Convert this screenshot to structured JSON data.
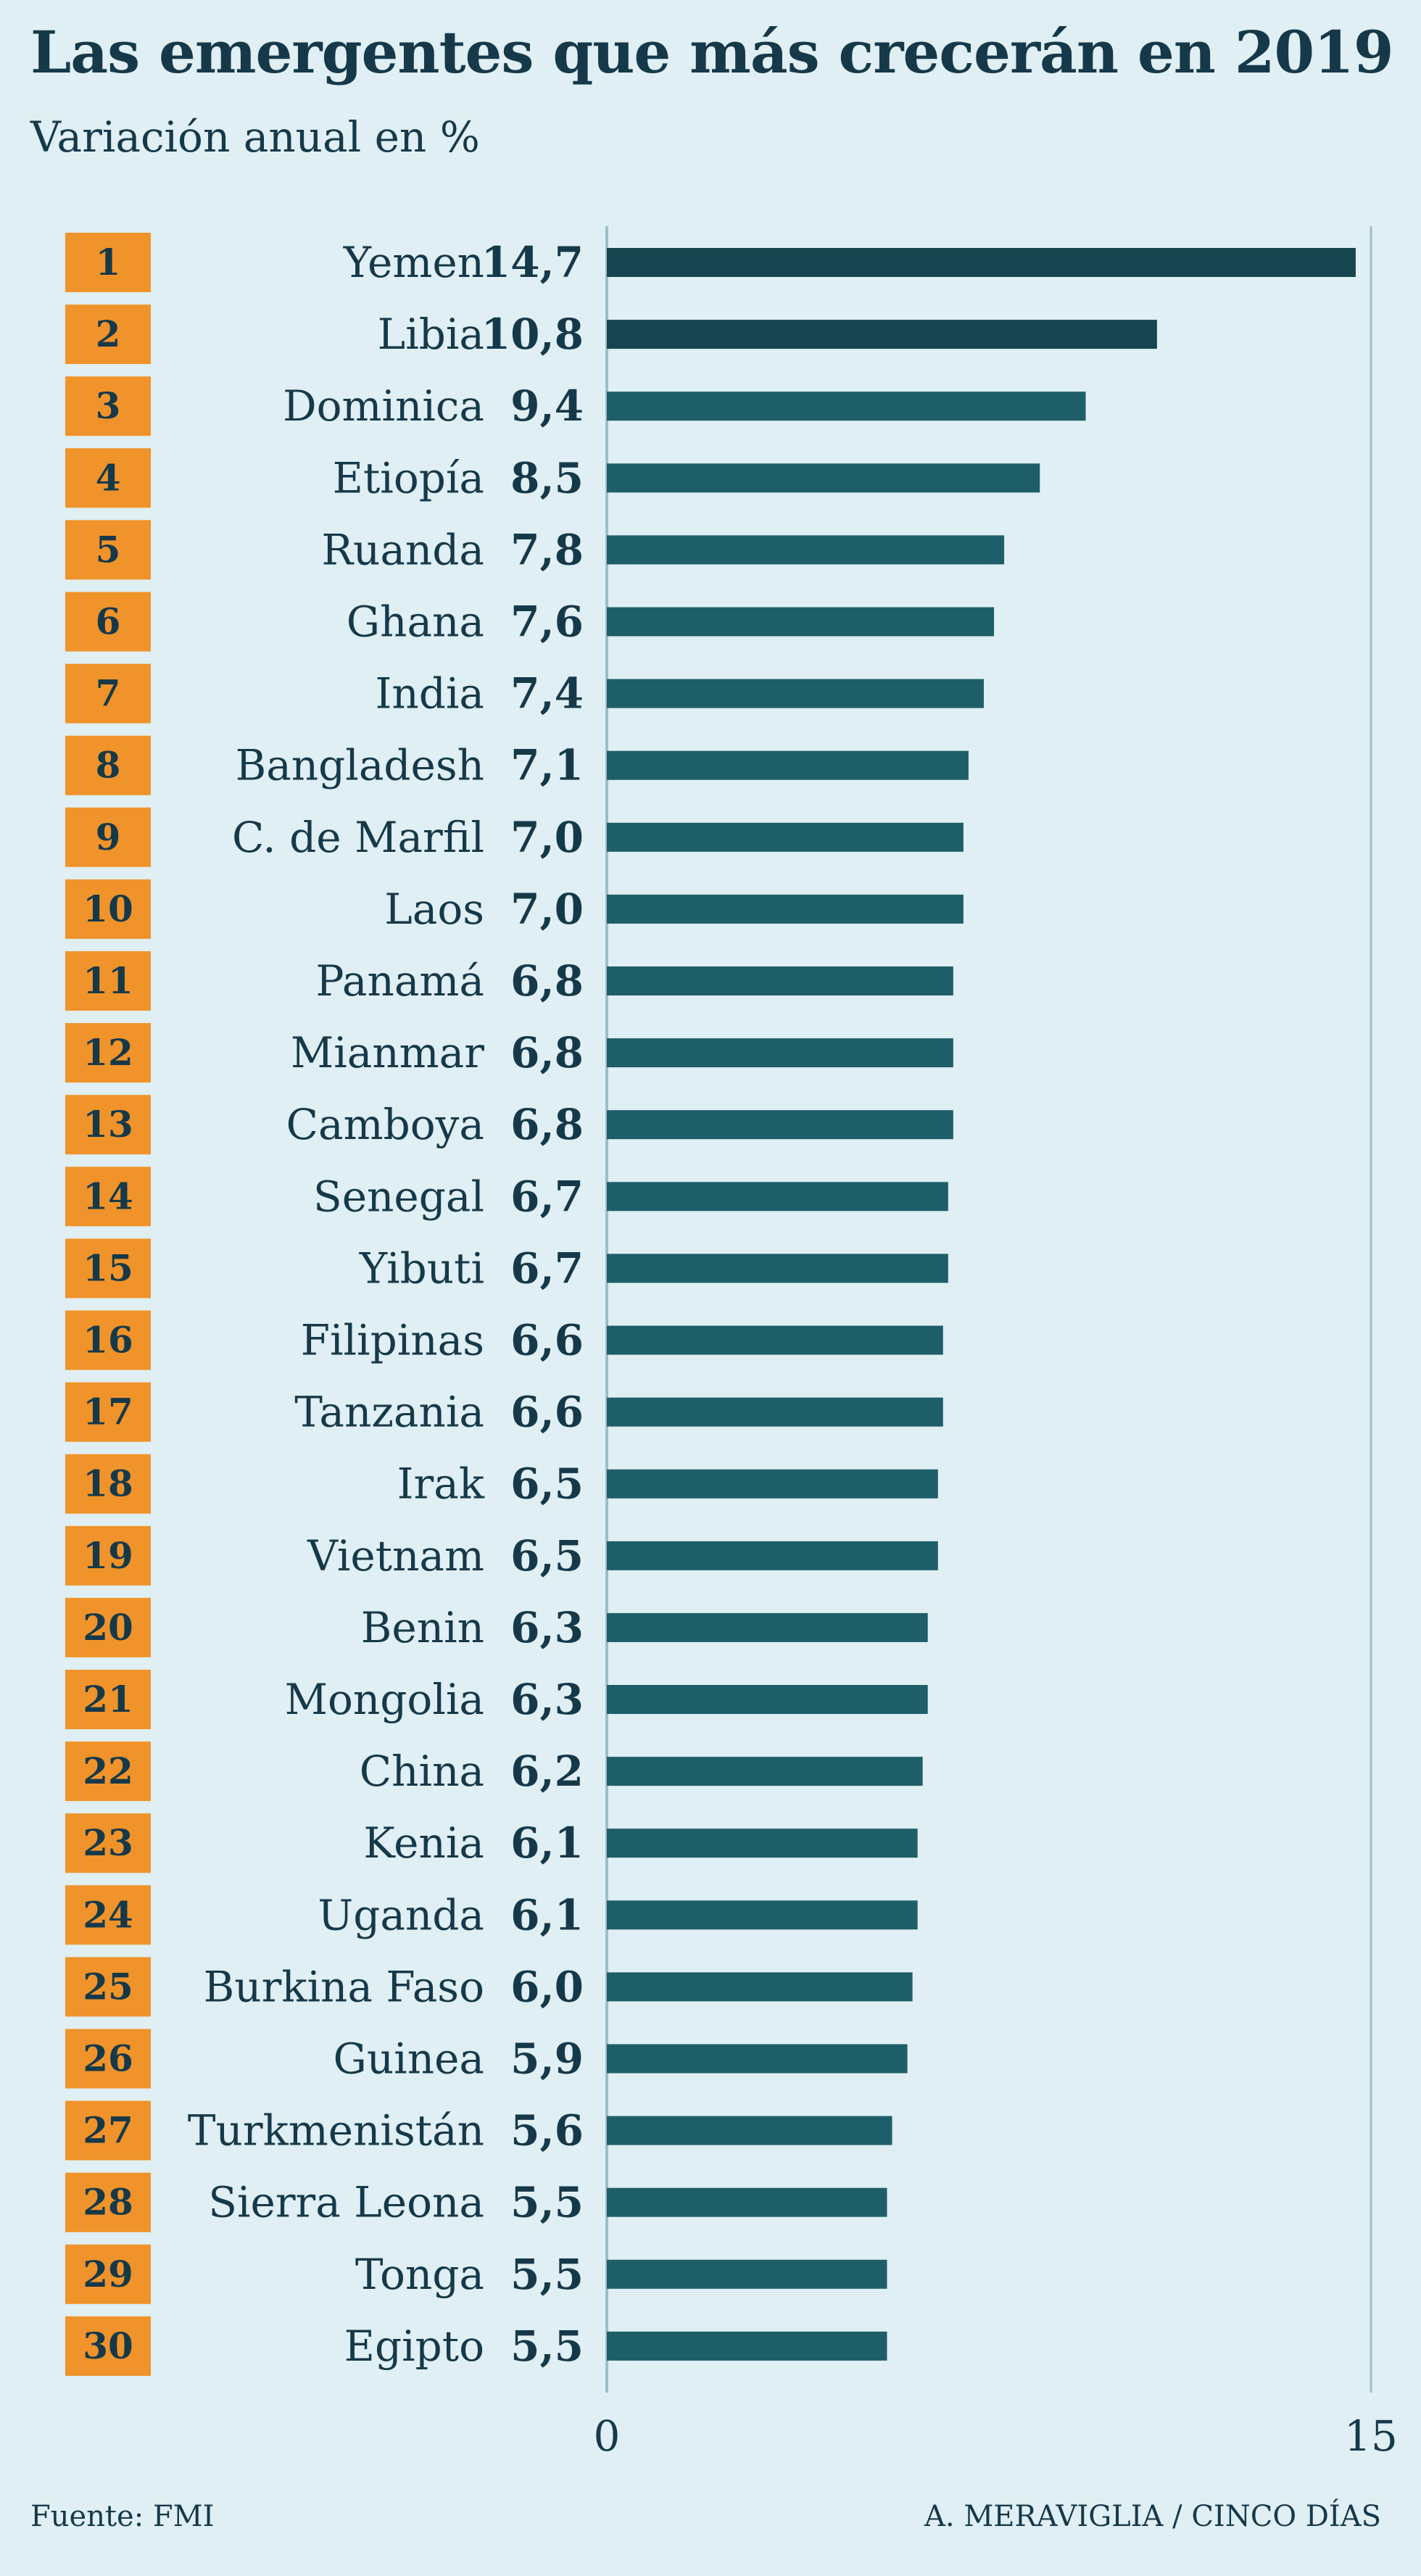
{
  "header": {
    "title": "Las emergentes que más crecerán en 2019",
    "subtitle": "Variación anual en %"
  },
  "footer": {
    "source": "Fuente: FMI",
    "credit": "A. MERAVIGLIA / CINCO DÍAS"
  },
  "colors": {
    "background": "#dfeff3",
    "rank_badge": "#f0932a",
    "bar_top": "#17454f",
    "bar": "#1e5e68",
    "axis": "#9dbdc8",
    "text": "#16394a"
  },
  "chart_data": {
    "type": "bar",
    "orientation": "horizontal",
    "title": "Las emergentes que más crecerán en 2019",
    "subtitle": "Variación anual en %",
    "xlim": [
      0,
      15
    ],
    "x_ticks": [
      "0",
      "15"
    ],
    "ranks": [
      "1",
      "2",
      "3",
      "4",
      "5",
      "6",
      "7",
      "8",
      "9",
      "10",
      "11",
      "12",
      "13",
      "14",
      "15",
      "16",
      "17",
      "18",
      "19",
      "20",
      "21",
      "22",
      "23",
      "24",
      "25",
      "26",
      "27",
      "28",
      "29",
      "30"
    ],
    "categories": [
      "Yemen",
      "Libia",
      "Dominica",
      "Etiopía",
      "Ruanda",
      "Ghana",
      "India",
      "Bangladesh",
      "C. de Marfil",
      "Laos",
      "Panamá",
      "Mianmar",
      "Camboya",
      "Senegal",
      "Yibuti",
      "Filipinas",
      "Tanzania",
      "Irak",
      "Vietnam",
      "Benin",
      "Mongolia",
      "China",
      "Kenia",
      "Uganda",
      "Burkina Faso",
      "Guinea",
      "Turkmenistán",
      "Sierra Leona",
      "Tonga",
      "Egipto"
    ],
    "values": [
      14.7,
      10.8,
      9.4,
      8.5,
      7.8,
      7.6,
      7.4,
      7.1,
      7.0,
      7.0,
      6.8,
      6.8,
      6.8,
      6.7,
      6.7,
      6.6,
      6.6,
      6.5,
      6.5,
      6.3,
      6.3,
      6.2,
      6.1,
      6.1,
      6.0,
      5.9,
      5.6,
      5.5,
      5.5,
      5.5
    ],
    "value_labels": [
      "14,7",
      "10,8",
      "9,4",
      "8,5",
      "7,8",
      "7,6",
      "7,4",
      "7,1",
      "7,0",
      "7,0",
      "6,8",
      "6,8",
      "6,8",
      "6,7",
      "6,7",
      "6,6",
      "6,6",
      "6,5",
      "6,5",
      "6,3",
      "6,3",
      "6,2",
      "6,1",
      "6,1",
      "6,0",
      "5,9",
      "5,6",
      "5,5",
      "5,5",
      "5,5"
    ],
    "grid": false
  }
}
